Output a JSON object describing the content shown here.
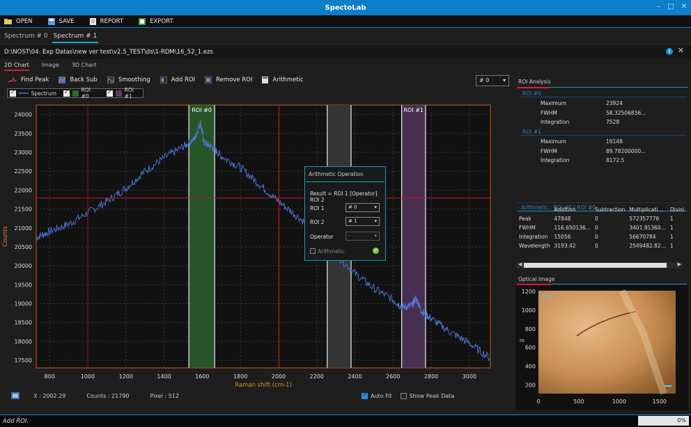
{
  "window": {
    "title": "SpectoLab"
  },
  "menu": [
    {
      "label": "OPEN",
      "icon": "folder-icon"
    },
    {
      "label": "SAVE",
      "icon": "save-icon"
    },
    {
      "label": "REPORT",
      "icon": "report-icon"
    },
    {
      "label": "EXPORT",
      "icon": "export-icon"
    }
  ],
  "doc_tabs": [
    "Spectrum # 0",
    "Spectrum # 1"
  ],
  "path": "D:\\NOST\\04. Exp Datas\\new ver test\\v2.5_TEST\\ds\\1-RDM\\16_52_1.ezs",
  "view_tabs": [
    "2D Chart",
    "Image",
    "3D Chart"
  ],
  "toolbar": {
    "find_peak": "Find Peak",
    "back_sub": "Back Sub",
    "smoothing": "Smoothing",
    "add_roi": "Add ROI",
    "remove_roi": "Remove ROI",
    "arithmetic": "Arithmetic",
    "selector": "# 0"
  },
  "legend": [
    "Spectrum",
    "ROI #0",
    "ROI #1"
  ],
  "chart_data": {
    "type": "line",
    "xlabel": "Raman shift (cm-1)",
    "ylabel": "Counts",
    "xlim": [
      730,
      3110
    ],
    "ylim": [
      17300,
      24250
    ],
    "xticks": [
      800,
      1000,
      1200,
      1400,
      1600,
      1800,
      2000,
      2200,
      2400,
      2600,
      2800,
      3000
    ],
    "yticks": [
      17500,
      18000,
      18500,
      19000,
      19500,
      20000,
      20500,
      21000,
      21500,
      22000,
      22500,
      23000,
      23500,
      24000
    ],
    "series": [
      {
        "name": "Spectrum",
        "x": [
          730,
          800,
          900,
          1000,
          1100,
          1200,
          1300,
          1400,
          1500,
          1560,
          1590,
          1610,
          1650,
          1700,
          1800,
          1900,
          2000,
          2100,
          2200,
          2300,
          2400,
          2500,
          2600,
          2650,
          2700,
          2720,
          2750,
          2800,
          2900,
          3000,
          3110
        ],
        "y": [
          20750,
          20900,
          21100,
          21400,
          21700,
          22050,
          22500,
          22850,
          23150,
          23350,
          23800,
          23250,
          23150,
          22900,
          22600,
          22150,
          21700,
          21300,
          20900,
          20300,
          19800,
          19400,
          19100,
          18900,
          18950,
          19150,
          18800,
          18600,
          18250,
          17950,
          17550
        ]
      }
    ],
    "rois": [
      {
        "name": "ROI #0",
        "x0": 1530,
        "x1": 1665,
        "color": "#2f6b30"
      },
      {
        "name": "ROI #1",
        "x0": 2645,
        "x1": 2770,
        "color": "#5a3a66"
      }
    ],
    "gray_band": [
      2255,
      2380
    ],
    "cursor": {
      "x": 2002.29,
      "y": 21790
    }
  },
  "status": {
    "x": "X :  2002.29",
    "counts": "Counts :  21790",
    "pixel": "Pixel :  512",
    "auto_fit": "Auto Fit",
    "show_peak": "Show Peak Data"
  },
  "arith_dialog": {
    "title": "Arithmetic Operation",
    "formula": "Result = ROI 1 [Operator] ROI 2",
    "roi1_label": "ROI 1",
    "roi1_value": "# 0",
    "roi2_label": "ROI 2",
    "roi2_value": "# 1",
    "operator_label": "Operator",
    "operator_value": "-",
    "check_label": "Arithmetic"
  },
  "roi_analysis": {
    "tab": "ROI Analysis",
    "rois": [
      {
        "name": "ROI #0",
        "maximum": "23924",
        "fwhm": "58.32506836...",
        "integration": "7528"
      },
      {
        "name": "ROI #1",
        "maximum": "19148",
        "fwhm": "89.78200000...",
        "integration": "8172.5"
      }
    ],
    "labels": {
      "maximum": "Maximum",
      "fwhm": "FWHM",
      "integration": "Integration"
    }
  },
  "arith_table": {
    "tab": "Arithmetic : ROI #0 | ROI #0",
    "headers": [
      "",
      "Addition",
      "Subtraction",
      "Multiplicati...",
      "Divisi"
    ],
    "rows": [
      [
        "Peak",
        "47848",
        "0",
        "572357776",
        "1"
      ],
      [
        "FWHM",
        "116.650136...",
        "0",
        "3401.81360...",
        "1"
      ],
      [
        "Integration",
        "15056",
        "0",
        "56670784",
        "1"
      ],
      [
        "Wavelength",
        "3193.42",
        "0",
        "2549482.82...",
        "1"
      ]
    ]
  },
  "optical": {
    "tab": "Optical Image",
    "zoom": "100x",
    "yticks": [
      "1200",
      "1000",
      "800",
      "600",
      "400",
      "200"
    ],
    "xticks": [
      "0",
      "500",
      "1000",
      "1500"
    ],
    "ylabel": "m"
  },
  "bottom": {
    "message": "Add ROI.",
    "progress": "0%"
  }
}
